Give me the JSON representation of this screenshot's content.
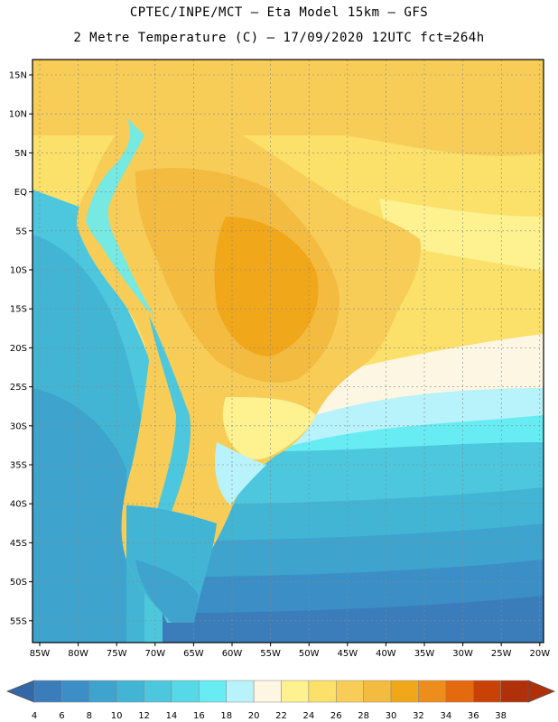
{
  "header": {
    "title_line1": "CPTEC/INPE/MCT –  Eta Model 15km – GFS",
    "title_line2": "2 Metre Temperature (C) – 17/09/2020 12UTC fct=264h"
  },
  "map": {
    "lat_labels": [
      "15N",
      "10N",
      "5N",
      "EQ",
      "5S",
      "10S",
      "15S",
      "20S",
      "25S",
      "30S",
      "35S",
      "40S",
      "45S",
      "50S",
      "55S"
    ],
    "lon_labels": [
      "85W",
      "80W",
      "75W",
      "70W",
      "65W",
      "60W",
      "55W",
      "50W",
      "45W",
      "40W",
      "35W",
      "30W",
      "25W",
      "20W"
    ]
  },
  "colorbar": {
    "labels": [
      "4",
      "6",
      "8",
      "10",
      "12",
      "14",
      "16",
      "18",
      "20",
      "22",
      "24",
      "26",
      "28",
      "30",
      "32",
      "34",
      "36",
      "38"
    ],
    "colors": [
      "#3b7dbb",
      "#3b8fc6",
      "#3ea3cd",
      "#42b5d5",
      "#4cc7dd",
      "#56d8e6",
      "#66ecf2",
      "#b8f2fa",
      "#fdf6e2",
      "#fdf190",
      "#fbe06a",
      "#f7cd58",
      "#f3bb3f",
      "#f1a71a",
      "#ed8e1c",
      "#e5690f",
      "#c84208",
      "#b0300a"
    ],
    "under_color": "#3467a8",
    "over_color": "#b0300a"
  }
}
